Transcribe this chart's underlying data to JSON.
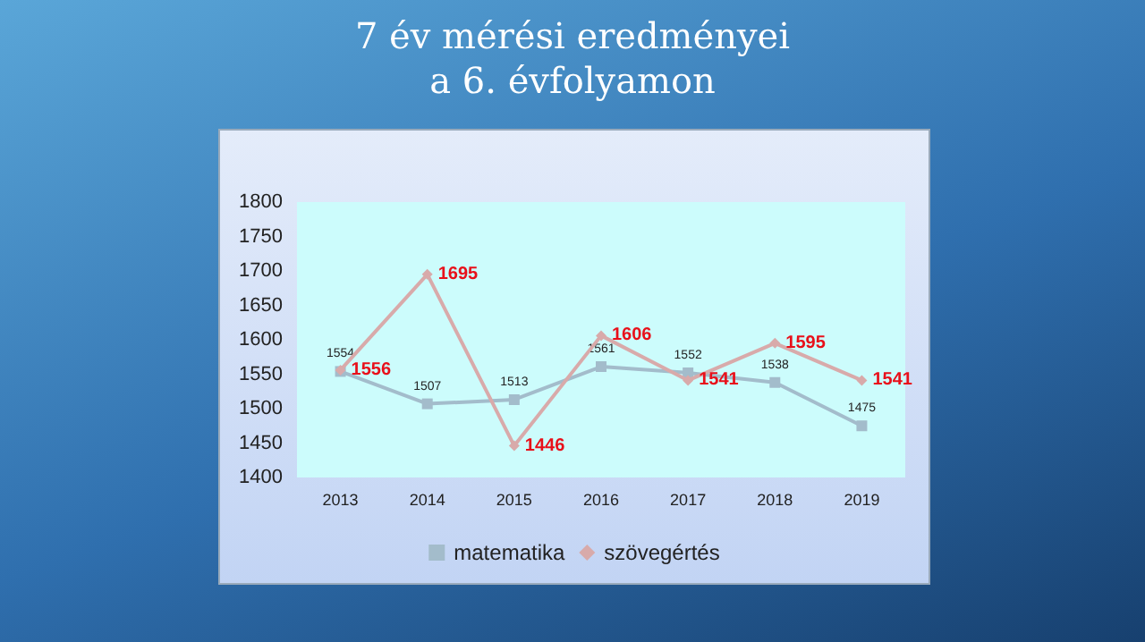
{
  "chart_data": {
    "type": "line",
    "title": "7 év mérési eredményei\na 6. évfolyamon",
    "categories": [
      "2013",
      "2014",
      "2015",
      "2016",
      "2017",
      "2018",
      "2019"
    ],
    "series": [
      {
        "name": "matematika",
        "color": "#a3bccb",
        "marker": "square",
        "values": [
          1554,
          1507,
          1513,
          1561,
          1552,
          1538,
          1475
        ]
      },
      {
        "name": "szövegértés",
        "color": "#d8aaaa",
        "marker": "diamond",
        "values": [
          1556,
          1695,
          1446,
          1606,
          1541,
          1595,
          1541
        ]
      }
    ],
    "ylim": [
      1400,
      1800
    ],
    "yticks": [
      1400,
      1450,
      1500,
      1550,
      1600,
      1650,
      1700,
      1750,
      1800
    ],
    "grid": false,
    "legend": "bottom",
    "data_labels": true
  }
}
